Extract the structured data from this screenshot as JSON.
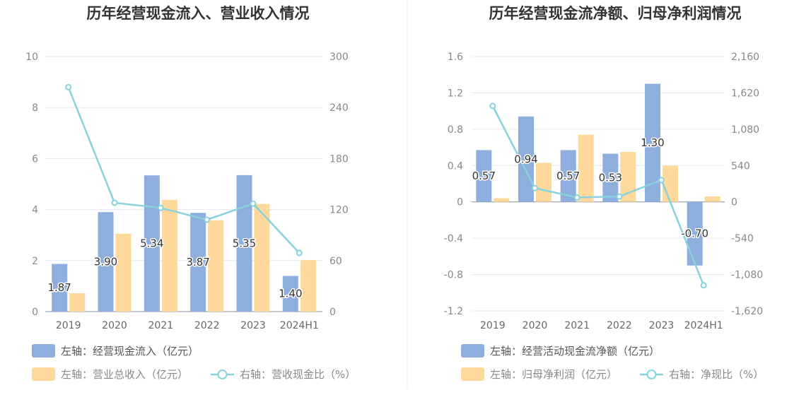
{
  "colors": {
    "bar_primary": "#8eaedd",
    "bar_secondary": "#fed99b",
    "line": "#86d3dd",
    "grid": "#e3e8f2",
    "axis": "#8a8f99",
    "divider": "#eeeeee"
  },
  "chart_data": [
    {
      "type": "bar+line",
      "title": "历年经营现金流入、营业收入情况",
      "categories": [
        "2019",
        "2020",
        "2021",
        "2022",
        "2023",
        "2024H1"
      ],
      "left_axis": {
        "ylim": [
          0,
          10
        ],
        "ticks": [
          "0",
          "2",
          "4",
          "6",
          "8",
          "10"
        ]
      },
      "right_axis": {
        "ylim": [
          0,
          300
        ],
        "ticks": [
          "0",
          "60",
          "120",
          "180",
          "240",
          "300"
        ]
      },
      "series": [
        {
          "name": "左轴：经营现金流入（亿元）",
          "kind": "bar",
          "axis": "left",
          "values": [
            1.87,
            3.9,
            5.34,
            3.87,
            5.35,
            1.4
          ],
          "labels": [
            "1.87",
            "3.90",
            "5.34",
            "3.87",
            "5.35",
            "1.40"
          ]
        },
        {
          "name": "左轴：营业总收入（亿元）",
          "kind": "bar",
          "axis": "left",
          "values": [
            0.72,
            3.05,
            4.38,
            3.58,
            4.22,
            2.02
          ]
        },
        {
          "name": "右轴：营收现金比（%）",
          "kind": "line",
          "axis": "right",
          "values": [
            264,
            128,
            122,
            108,
            127,
            69
          ]
        }
      ],
      "legend_position": "bottom",
      "grid": true
    },
    {
      "type": "bar+line",
      "title": "历年经营现金流净额、归母净利润情况",
      "categories": [
        "2019",
        "2020",
        "2021",
        "2022",
        "2023",
        "2024H1"
      ],
      "left_axis": {
        "ylim": [
          -1.2,
          1.6
        ],
        "ticks": [
          "-1.2",
          "-0.8",
          "-0.4",
          "0",
          "0.4",
          "0.8",
          "1.2",
          "1.6"
        ]
      },
      "right_axis": {
        "ylim": [
          -1620,
          2160
        ],
        "ticks": [
          "-1,620",
          "-1,080",
          "-540",
          "0",
          "540",
          "1,080",
          "1,620",
          "2,160"
        ]
      },
      "series": [
        {
          "name": "左轴：经营活动现金流净额（亿元）",
          "kind": "bar",
          "axis": "left",
          "values": [
            0.57,
            0.94,
            0.57,
            0.53,
            1.3,
            -0.7
          ],
          "labels": [
            "0.57",
            "0.94",
            "0.57",
            "0.53",
            "1.30",
            "-0.70"
          ]
        },
        {
          "name": "左轴：归母净利润（亿元）",
          "kind": "bar",
          "axis": "left",
          "values": [
            0.04,
            0.43,
            0.74,
            0.55,
            0.4,
            0.06
          ]
        },
        {
          "name": "右轴：净现比（%）",
          "kind": "line",
          "axis": "right",
          "values": [
            1425,
            205,
            65,
            80,
            325,
            -1240
          ]
        }
      ],
      "legend_position": "bottom",
      "grid": true
    }
  ]
}
